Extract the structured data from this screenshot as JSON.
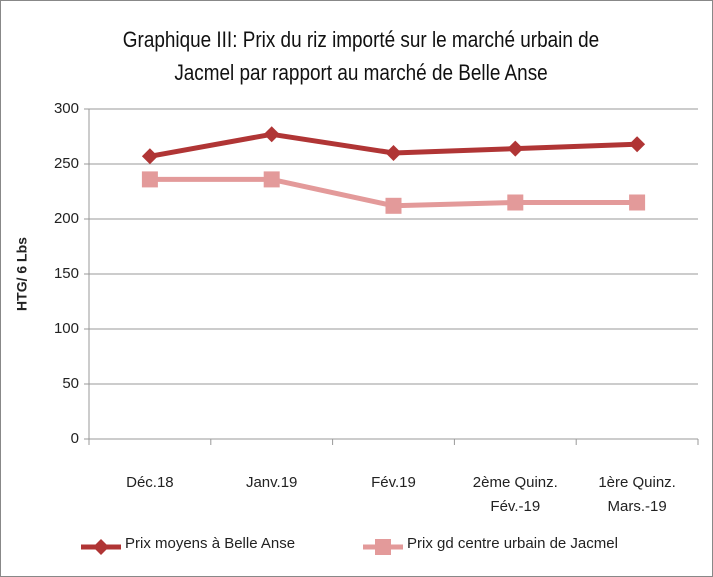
{
  "chart_data": {
    "type": "line",
    "title": "Graphique III: Prix du riz importé sur le marché urbain de Jacmel par rapport au marché de Belle Anse",
    "y_label": "HTG/ 6 Lbs",
    "categories": [
      "Déc.18",
      "Janv.19",
      "Fév.19",
      "2ème  Quinz. Fév.-19",
      "1ère  Quinz. Mars.-19"
    ],
    "series": [
      {
        "name": "Prix moyens à Belle Anse",
        "color": "#b03535",
        "marker": "diamond",
        "values": [
          257,
          277,
          260,
          264,
          268
        ]
      },
      {
        "name": "Prix gd centre urbain de Jacmel",
        "color": "#e39a9a",
        "marker": "square",
        "values": [
          236,
          236,
          212,
          215,
          215
        ]
      }
    ],
    "ylim": [
      0,
      300
    ],
    "yticks": [
      0,
      50,
      100,
      150,
      200,
      250,
      300
    ],
    "grid": true
  }
}
